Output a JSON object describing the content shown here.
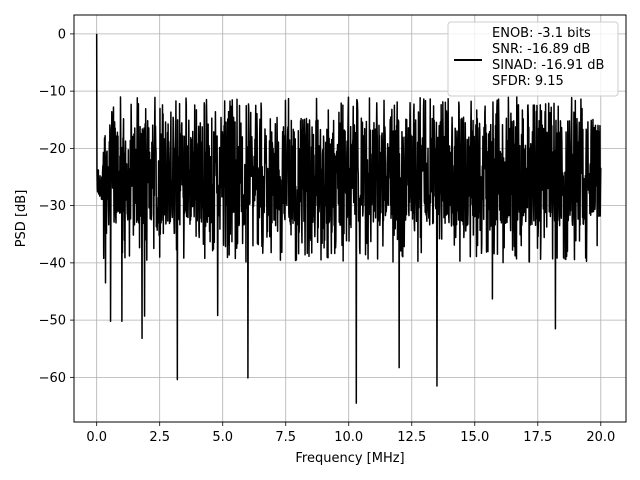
{
  "chart_data": {
    "type": "line",
    "title": "",
    "xlabel": "Frequency [MHz]",
    "ylabel": "PSD [dB]",
    "xlim": [
      -0.9,
      21.0
    ],
    "ylim": [
      -67.8,
      3.3
    ],
    "xticks": [
      0.0,
      2.5,
      5.0,
      7.5,
      10.0,
      12.5,
      15.0,
      17.5,
      20.0
    ],
    "xtick_labels": [
      "0.0",
      "2.5",
      "5.0",
      "7.5",
      "10.0",
      "12.5",
      "15.0",
      "17.5",
      "20.0"
    ],
    "yticks": [
      0,
      -10,
      -20,
      -30,
      -40,
      -50,
      -60
    ],
    "ytick_labels": [
      "0",
      "−10",
      "−20",
      "−30",
      "−40",
      "−50",
      "−60"
    ],
    "grid": true,
    "legend_position": "top-right",
    "legend_lines": [
      "ENOB: -3.1 bits",
      "SNR: -16.89 dB",
      "SINAD: -16.91 dB",
      "SFDR: 9.15"
    ],
    "series": [
      {
        "color": "#000000",
        "x_range": [
          0.0,
          20.0
        ],
        "noise_floor_dB": -24,
        "upper_envelope_dB": -14,
        "dc_peak": {
          "x": 0.0,
          "y": 0.0
        },
        "notable_dips": [
          {
            "x": 0.35,
            "y": -43.5
          },
          {
            "x": 0.55,
            "y": -50.2
          },
          {
            "x": 1.0,
            "y": -50.2
          },
          {
            "x": 1.8,
            "y": -53.2
          },
          {
            "x": 1.9,
            "y": -49.3
          },
          {
            "x": 3.2,
            "y": -60.4
          },
          {
            "x": 4.8,
            "y": -49.2
          },
          {
            "x": 6.0,
            "y": -60.1
          },
          {
            "x": 10.3,
            "y": -64.5
          },
          {
            "x": 12.0,
            "y": -58.3
          },
          {
            "x": 13.5,
            "y": -61.5
          },
          {
            "x": 15.7,
            "y": -46.3
          },
          {
            "x": 18.2,
            "y": -51.5
          }
        ]
      }
    ]
  }
}
